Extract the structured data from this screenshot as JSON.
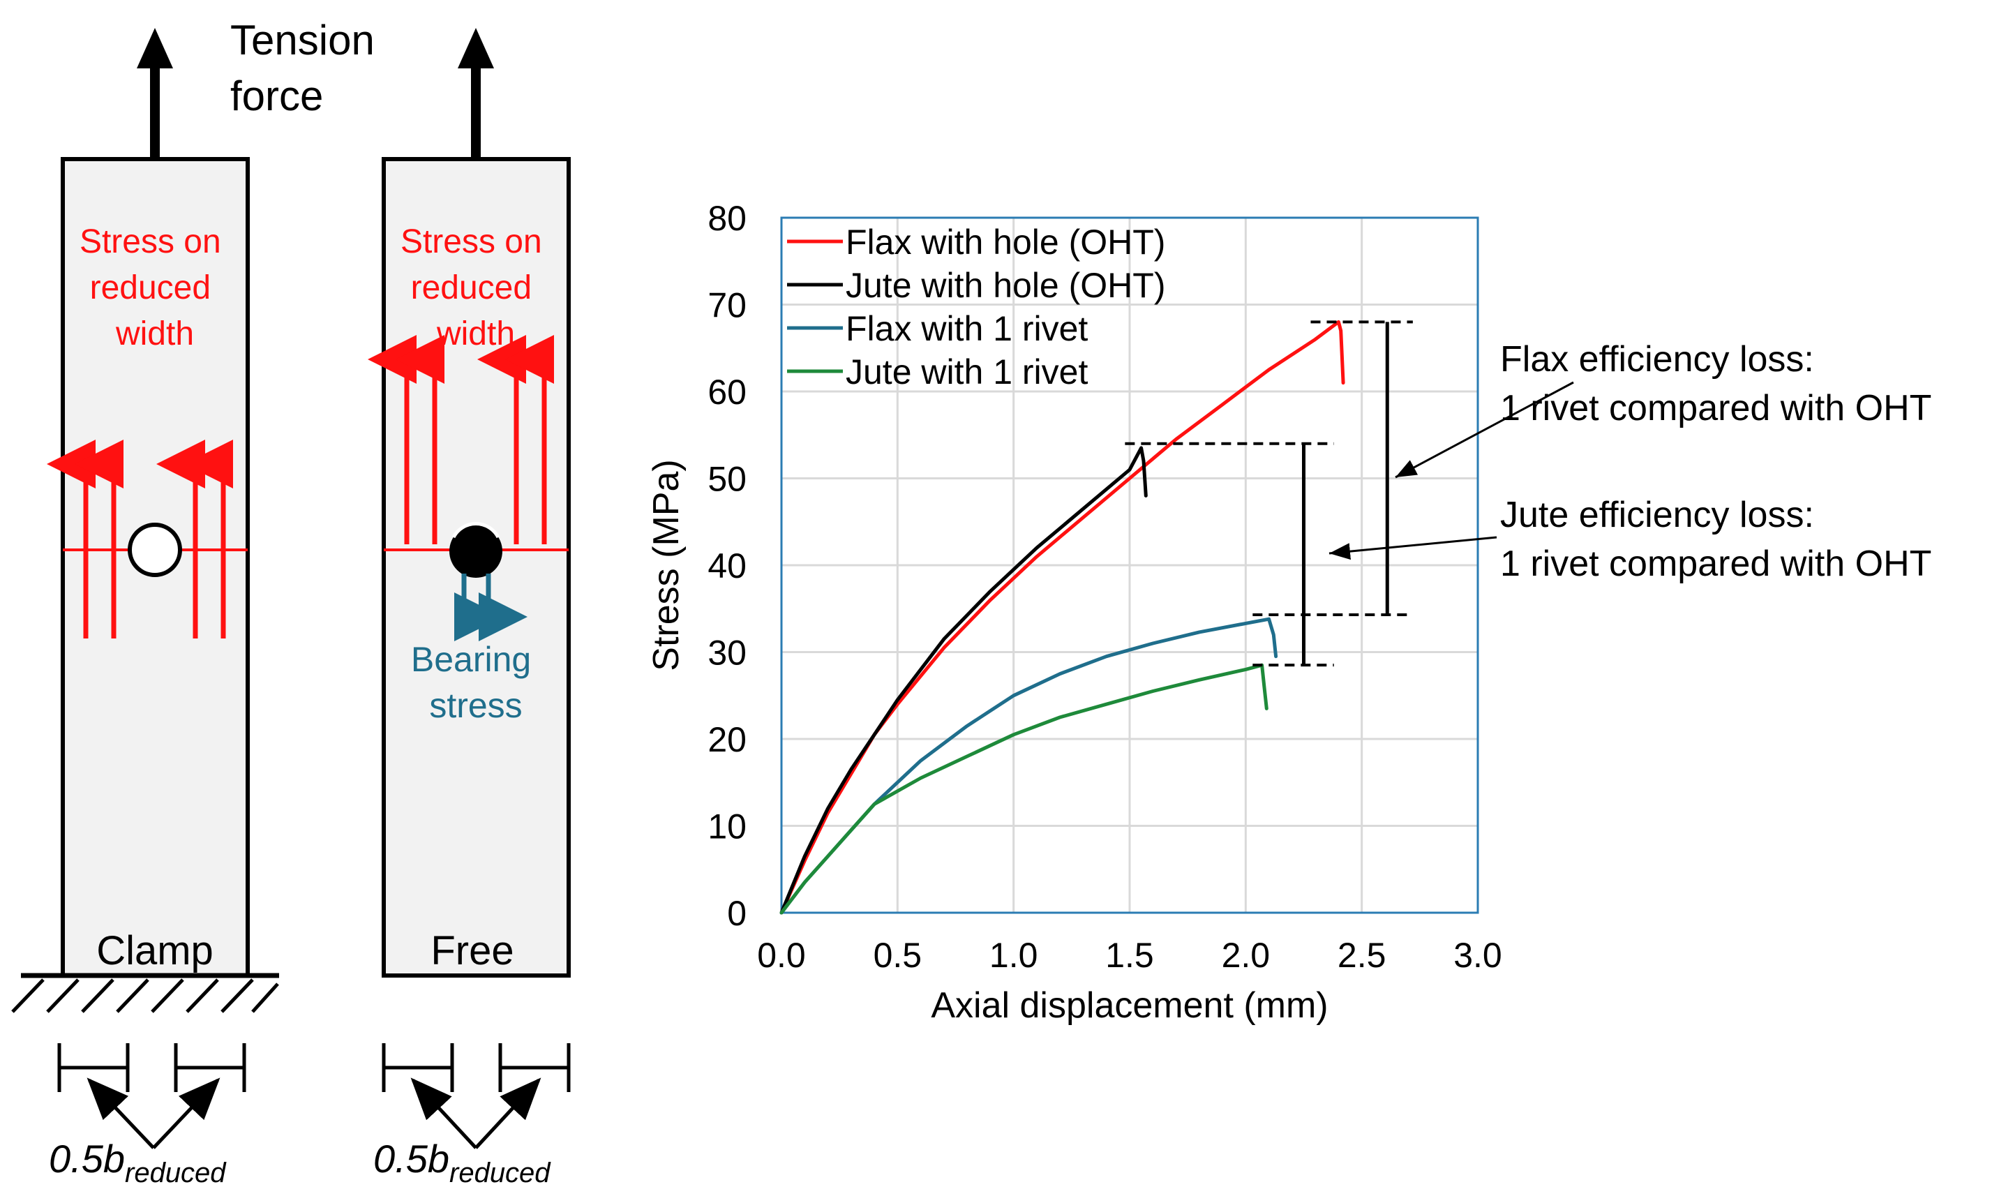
{
  "colors": {
    "red": "#ff1111",
    "black": "#000000",
    "blue": "#1f6e8c",
    "green": "#1e8a3a",
    "specimen_fill": "#f2f2f2",
    "grid": "#d9d9d9",
    "frame": "#2b7cb3"
  },
  "diagram": {
    "tension_label": [
      "Tension",
      "force"
    ],
    "left_specimen": {
      "stress_label": [
        "Stress on",
        "reduced",
        "width"
      ],
      "end_label": "Clamp",
      "hole_state": "open hole"
    },
    "right_specimen": {
      "stress_label": [
        "Stress on",
        "reduced",
        "width"
      ],
      "bearing_label": [
        "Bearing",
        "stress"
      ],
      "end_label": "Free",
      "hole_state": "riveted"
    },
    "width_label_base": "0.5b",
    "width_label_sub": "reduced"
  },
  "annotations": {
    "flax_loss": [
      "Flax efficiency loss:",
      "1 rivet compared with OHT"
    ],
    "jute_loss": [
      "Jute efficiency loss:",
      "1 rivet compared with OHT"
    ]
  },
  "chart_data": {
    "type": "line",
    "xlabel": "Axial displacement (mm)",
    "ylabel": "Stress (MPa)",
    "xlim": [
      0,
      3
    ],
    "ylim": [
      0,
      80
    ],
    "xticks": [
      "0.0",
      "0.5",
      "1.0",
      "1.5",
      "2.0",
      "2.5",
      "3.0"
    ],
    "yticks": [
      "0",
      "10",
      "20",
      "30",
      "40",
      "50",
      "60",
      "70",
      "80"
    ],
    "grid": true,
    "legend_position": "top-left",
    "series": [
      {
        "name": "Flax with hole (OHT)",
        "color": "red",
        "x": [
          0,
          0.1,
          0.2,
          0.3,
          0.4,
          0.5,
          0.7,
          0.9,
          1.1,
          1.3,
          1.5,
          1.7,
          1.9,
          2.1,
          2.3,
          2.4,
          2.41,
          2.42
        ],
        "y": [
          0,
          6,
          11.5,
          16,
          20.5,
          24,
          30.5,
          36,
          41,
          45.5,
          50,
          54.5,
          58.5,
          62.5,
          66,
          68,
          67,
          61
        ]
      },
      {
        "name": "Jute with hole (OHT)",
        "color": "black",
        "x": [
          0,
          0.1,
          0.2,
          0.3,
          0.4,
          0.5,
          0.7,
          0.9,
          1.1,
          1.3,
          1.5,
          1.55,
          1.56,
          1.57
        ],
        "y": [
          0,
          6.5,
          12,
          16.5,
          20.5,
          24.5,
          31.5,
          37,
          42,
          46.5,
          51,
          53.5,
          52,
          48
        ]
      },
      {
        "name": "Flax with 1 rivet",
        "color": "blue",
        "x": [
          0,
          0.1,
          0.2,
          0.3,
          0.4,
          0.6,
          0.8,
          1.0,
          1.2,
          1.4,
          1.6,
          1.8,
          2.0,
          2.1,
          2.12,
          2.13
        ],
        "y": [
          0,
          3.5,
          6.5,
          9.5,
          12.5,
          17.5,
          21.5,
          25,
          27.5,
          29.5,
          31,
          32.3,
          33.3,
          33.8,
          32,
          29.5
        ]
      },
      {
        "name": "Jute with 1 rivet",
        "color": "green",
        "x": [
          0,
          0.1,
          0.2,
          0.3,
          0.4,
          0.6,
          0.8,
          1.0,
          1.2,
          1.4,
          1.6,
          1.8,
          2.0,
          2.07,
          2.08,
          2.09
        ],
        "y": [
          0,
          3.5,
          6.5,
          9.5,
          12.5,
          15.5,
          18,
          20.5,
          22.5,
          24,
          25.5,
          26.8,
          28,
          28.5,
          26,
          23.5
        ]
      }
    ],
    "reference_levels": [
      {
        "name": "flax-oht-peak",
        "y": 68,
        "x_from": 2.28,
        "x_to": 2.72
      },
      {
        "name": "jute-oht-peak",
        "y": 54,
        "x_from": 1.48,
        "x_to": 2.38
      },
      {
        "name": "flax-rivet-peak",
        "y": 34.3,
        "x_from": 2.03,
        "x_to": 2.72
      },
      {
        "name": "jute-rivet-peak",
        "y": 28.5,
        "x_from": 2.03,
        "x_to": 2.38
      }
    ],
    "loss_bars": [
      {
        "name": "flax-loss-bar",
        "x": 2.61,
        "y_from": 34.3,
        "y_to": 68
      },
      {
        "name": "jute-loss-bar",
        "x": 2.25,
        "y_from": 28.5,
        "y_to": 54
      }
    ]
  }
}
